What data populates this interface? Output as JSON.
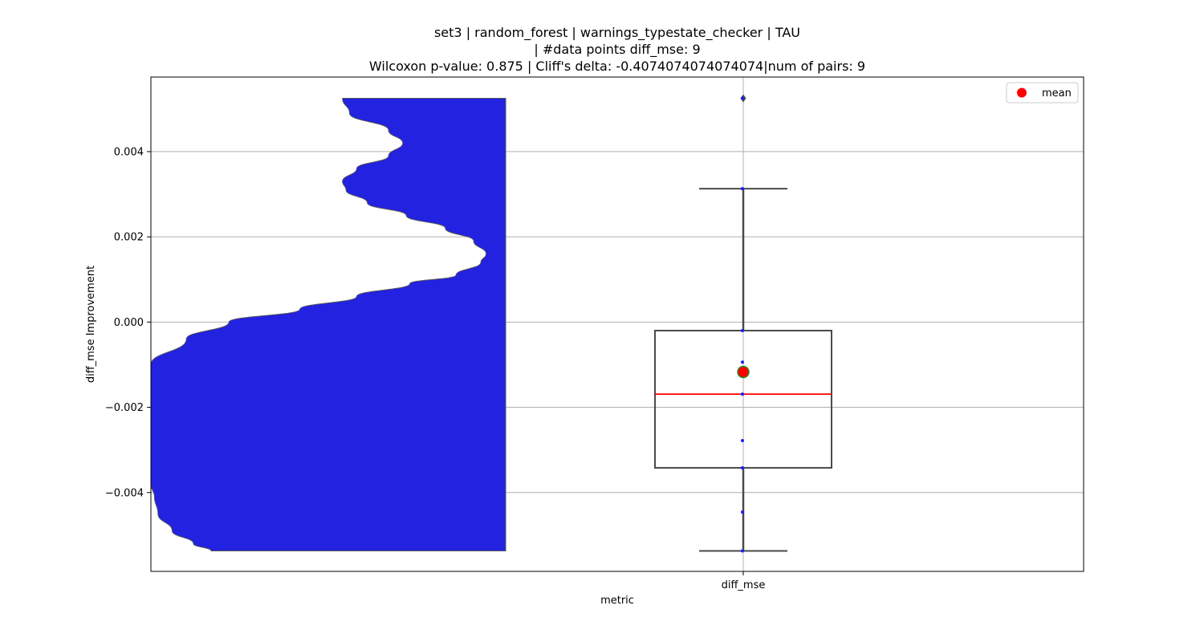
{
  "chart_data": {
    "type": "violin+box",
    "title_lines": [
      "set3 | random_forest | warnings_typestate_checker | TAU",
      "| #data points diff_mse: 9",
      "Wilcoxon p-value: 0.875 | Cliff's delta: -0.4074074074074074|num of pairs: 9"
    ],
    "xlabel": "metric",
    "ylabel": "diff_mse Improvement",
    "categories": [
      "diff_mse"
    ],
    "ylim": [
      -0.00585,
      0.00575
    ],
    "yticks": [
      -0.004,
      -0.002,
      0.0,
      0.002,
      0.004
    ],
    "ytick_labels": [
      "−0.004",
      "−0.002",
      "0.000",
      "0.002",
      "0.004"
    ],
    "grid": true,
    "legend": {
      "placement": "top-right",
      "entries": [
        "mean"
      ]
    },
    "colors": {
      "violin": "#2222e0",
      "median": "#ff0000",
      "mean": "#ff0000",
      "mean_edge": "#2a8a2a",
      "box": "#4a4a4a",
      "points": "#1a1aff"
    },
    "points": [
      -0.00537,
      -0.00446,
      -0.00342,
      -0.00278,
      -0.00169,
      -0.00094,
      -0.0002,
      0.00313,
      0.00525
    ],
    "box": {
      "q1": -0.00342,
      "median": -0.00169,
      "q3": -0.0002,
      "whisker_low": -0.00537,
      "whisker_high": 0.00313,
      "outliers": [
        0.00525
      ],
      "mean": -0.00117
    },
    "violin": {
      "y": [
        0.00525,
        0.0049,
        0.0045,
        0.0042,
        0.0039,
        0.0036,
        0.0033,
        0.0031,
        0.0028,
        0.0025,
        0.0022,
        0.0019,
        0.0016,
        0.0014,
        0.0011,
        0.0009,
        0.0006,
        0.0003,
        0.0,
        -0.0004,
        -0.001,
        -0.002,
        -0.003,
        -0.0038,
        -0.0041,
        -0.0045,
        -0.0049,
        -0.0052,
        -0.00537
      ],
      "width": [
        0.46,
        0.44,
        0.33,
        0.29,
        0.33,
        0.42,
        0.46,
        0.45,
        0.39,
        0.28,
        0.17,
        0.09,
        0.055,
        0.07,
        0.14,
        0.27,
        0.42,
        0.58,
        0.78,
        0.9,
        1.0,
        1.0,
        1.0,
        1.0,
        0.99,
        0.98,
        0.94,
        0.88,
        0.83
      ]
    }
  }
}
